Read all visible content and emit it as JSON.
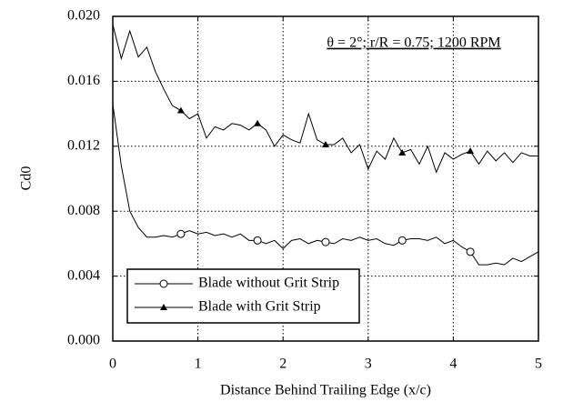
{
  "chart_data": {
    "type": "line",
    "annotation": "θ = 2°; r/R = 0.75; 1200 RPM",
    "x_label": "Distance Behind Trailing Edge (x/c)",
    "y_label": "Cd0",
    "x": [
      0,
      0.1,
      0.2,
      0.3,
      0.4,
      0.5,
      0.6,
      0.7,
      0.8,
      0.9,
      1,
      1.1,
      1.2,
      1.3,
      1.4,
      1.5,
      1.6,
      1.7,
      1.8,
      1.9,
      2,
      2.1,
      2.2,
      2.3,
      2.4,
      2.5,
      2.6,
      2.7,
      2.8,
      2.9,
      3,
      3.1,
      3.2,
      3.3,
      3.4,
      3.5,
      3.6,
      3.7,
      3.8,
      3.9,
      4,
      4.1,
      4.2,
      4.3,
      4.4,
      4.5,
      4.6,
      4.7,
      4.8,
      4.9,
      5
    ],
    "series": [
      {
        "name": "Blade without Grit Strip",
        "color": "#000000",
        "marker": "circle",
        "values": [
          0.0146,
          0.0108,
          0.008,
          0.007,
          0.0064,
          0.0064,
          0.0065,
          0.0064,
          0.0066,
          0.0068,
          0.0066,
          0.0067,
          0.0065,
          0.0066,
          0.0064,
          0.0066,
          0.0062,
          0.0062,
          0.006,
          0.0062,
          0.0057,
          0.0062,
          0.0063,
          0.006,
          0.0062,
          0.0061,
          0.006,
          0.0063,
          0.0062,
          0.0064,
          0.0062,
          0.0063,
          0.006,
          0.0059,
          0.0062,
          0.0063,
          0.0063,
          0.0062,
          0.0064,
          0.006,
          0.0062,
          0.0058,
          0.0055,
          0.0047,
          0.0047,
          0.0048,
          0.0047,
          0.0051,
          0.0049,
          0.0052,
          0.0055
        ]
      },
      {
        "name": "Blade with Grit Strip",
        "color": "#000000",
        "marker": "triangle",
        "values": [
          0.0195,
          0.0174,
          0.0191,
          0.0175,
          0.0181,
          0.0166,
          0.0155,
          0.0145,
          0.0142,
          0.0137,
          0.014,
          0.0125,
          0.0132,
          0.013,
          0.0134,
          0.0133,
          0.013,
          0.0134,
          0.013,
          0.012,
          0.0127,
          0.0124,
          0.0122,
          0.014,
          0.0124,
          0.0121,
          0.0121,
          0.0125,
          0.0116,
          0.0121,
          0.0106,
          0.0117,
          0.0112,
          0.0125,
          0.0116,
          0.0118,
          0.0109,
          0.012,
          0.0104,
          0.0116,
          0.0112,
          0.0115,
          0.0117,
          0.0109,
          0.0117,
          0.0111,
          0.0116,
          0.011,
          0.0116,
          0.0114,
          0.0114
        ]
      }
    ],
    "xlim": [
      0,
      5
    ],
    "xticks": [
      0,
      1,
      2,
      3,
      4,
      5
    ],
    "ylim": [
      0,
      0.02
    ],
    "yticks": [
      {
        "value": 0,
        "label": "0.000"
      },
      0.004,
      0.008,
      0.012,
      0.016,
      {
        "value": 0.02,
        "label": "0.020"
      }
    ],
    "grid": true,
    "legend": "lower left"
  }
}
